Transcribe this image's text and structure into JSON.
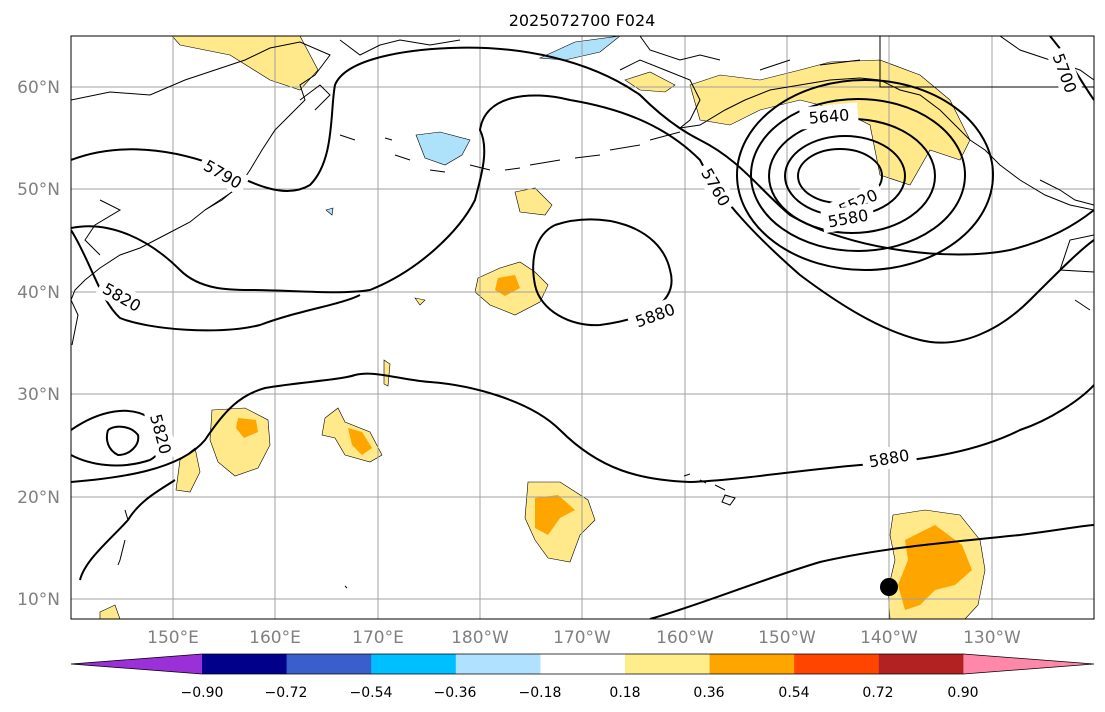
{
  "title": "2025072700 F024",
  "colors": {
    "land_outline": "#000000",
    "grid": "#a0a0a0",
    "contour": "#000000",
    "pos_light": "#ffe98a",
    "pos_mid": "#ffa500",
    "neg_light": "#aee1fa"
  },
  "axes": {
    "lon_labels": [
      "150°E",
      "160°E",
      "170°E",
      "180°W",
      "170°W",
      "160°W",
      "150°W",
      "140°W",
      "130°W"
    ],
    "lat_labels": [
      "60°N",
      "50°N",
      "40°N",
      "30°N",
      "20°N",
      "10°N"
    ],
    "lon_range": [
      "140°E",
      "120°W"
    ],
    "lat_range": [
      8,
      65
    ]
  },
  "contour_labels": [
    "5700",
    "5790",
    "5820",
    "5640",
    "5760",
    "5520",
    "5580",
    "5880",
    "5820",
    "5880"
  ],
  "colorbar": {
    "colors": [
      "#9b30d9",
      "#00008b",
      "#3a5fcd",
      "#00bfff",
      "#b0e2ff",
      "#ffffff",
      "#ffec8b",
      "#ffa500",
      "#ff4500",
      "#b22222",
      "#ff88aa"
    ],
    "tick_labels": [
      "−0.90",
      "−0.72",
      "−0.54",
      "−0.36",
      "−0.18",
      "0.18",
      "0.36",
      "0.54",
      "0.72",
      "0.90"
    ]
  }
}
